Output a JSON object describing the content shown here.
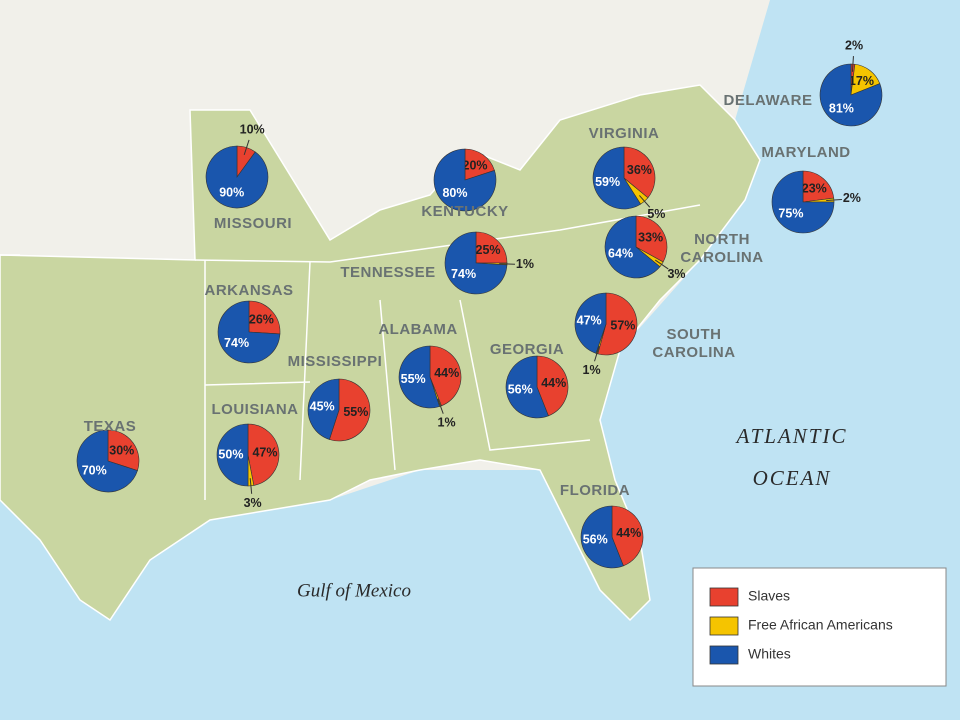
{
  "legend": [
    {
      "name": "Slaves",
      "color": "#e8412f"
    },
    {
      "name": "Free African Americans",
      "color": "#f5c400"
    },
    {
      "name": "Whites",
      "color": "#1a56ad"
    }
  ],
  "ocean_label": [
    "ATLANTIC",
    "OCEAN"
  ],
  "gulf_label": "Gulf of Mexico",
  "pies": [
    {
      "name": [
        "MISSOURI"
      ],
      "values": [
        10,
        null,
        90
      ],
      "value_labels": [
        "10%",
        null,
        "90%"
      ]
    },
    {
      "name": [
        "KENTUCKY"
      ],
      "values": [
        20,
        null,
        80
      ],
      "value_labels": [
        "20%",
        null,
        "80%"
      ]
    },
    {
      "name": [
        "VIRGINIA"
      ],
      "values": [
        36,
        5,
        59
      ],
      "value_labels": [
        "36%",
        "5%",
        "59%"
      ]
    },
    {
      "name": [
        "DELAWARE"
      ],
      "values": [
        2,
        17,
        81
      ],
      "value_labels": [
        "2%",
        "17%",
        "81%"
      ]
    },
    {
      "name": [
        "MARYLAND"
      ],
      "values": [
        23,
        2,
        75
      ],
      "value_labels": [
        "23%",
        "2%",
        "75%"
      ]
    },
    {
      "name": [
        "TENNESSEE"
      ],
      "values": [
        25,
        1,
        74
      ],
      "value_labels": [
        "25%",
        "1%",
        "74%"
      ]
    },
    {
      "name": [
        "NORTH",
        "CAROLINA"
      ],
      "values": [
        33,
        3,
        64
      ],
      "value_labels": [
        "33%",
        "3%",
        "64%"
      ]
    },
    {
      "name": [
        "ARKANSAS"
      ],
      "values": [
        26,
        null,
        74
      ],
      "value_labels": [
        "26%",
        null,
        "74%"
      ]
    },
    {
      "name": [
        "SOUTH",
        "CAROLINA"
      ],
      "values": [
        57,
        1,
        47
      ],
      "value_labels": [
        "57%",
        "1%",
        "47%"
      ]
    },
    {
      "name": [
        "ALABAMA"
      ],
      "values": [
        44,
        1,
        55
      ],
      "value_labels": [
        "44%",
        "1%",
        "55%"
      ]
    },
    {
      "name": [
        "GEORGIA"
      ],
      "values": [
        44,
        null,
        56
      ],
      "value_labels": [
        "44%",
        null,
        "56%"
      ]
    },
    {
      "name": [
        "MISSISSIPPI"
      ],
      "values": [
        55,
        null,
        45
      ],
      "value_labels": [
        "55%",
        null,
        "45%"
      ]
    },
    {
      "name": [
        "LOUISIANA"
      ],
      "values": [
        47,
        3,
        50
      ],
      "value_labels": [
        "47%",
        "3%",
        "50%"
      ]
    },
    {
      "name": [
        "TEXAS"
      ],
      "values": [
        30,
        null,
        70
      ],
      "value_labels": [
        "30%",
        null,
        "70%"
      ]
    },
    {
      "name": [
        "FLORIDA"
      ],
      "values": [
        44,
        null,
        56
      ],
      "value_labels": [
        "44%",
        null,
        "56%"
      ]
    }
  ]
}
